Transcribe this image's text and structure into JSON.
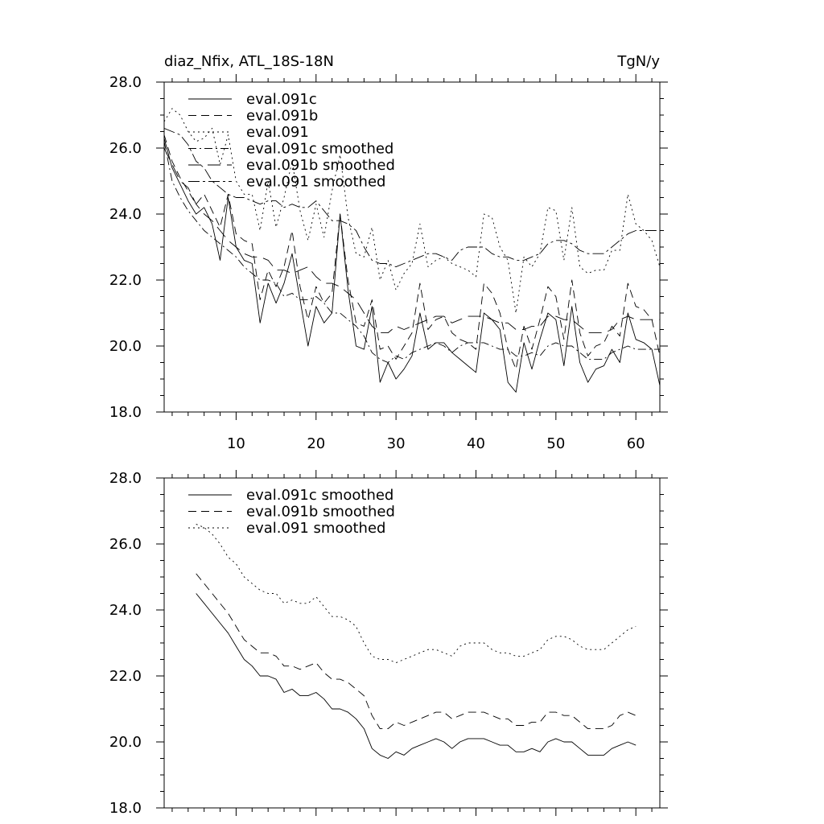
{
  "chart_data": [
    {
      "type": "line",
      "title": "diaz_Nfix, ATL_18S-18N",
      "units": "TgN/y",
      "xlabel": "",
      "ylabel": "",
      "xlim": [
        1,
        63
      ],
      "ylim": [
        18,
        28
      ],
      "xticks": [
        10,
        20,
        30,
        40,
        50,
        60
      ],
      "xtick_labels": [
        "10",
        "20",
        "30",
        "40",
        "50",
        "60"
      ],
      "yticks": [
        18,
        20,
        22,
        24,
        26,
        28
      ],
      "ytick_labels": [
        "18.0",
        "20.0",
        "22.0",
        "24.0",
        "26.0",
        "28.0"
      ],
      "legend": "top-left",
      "series": [
        {
          "name": "eval.091c",
          "dash": "solid",
          "x_start": 1,
          "values": [
            26.3,
            25.4,
            24.9,
            24.4,
            24.0,
            24.2,
            23.7,
            22.6,
            24.5,
            23.0,
            22.6,
            22.5,
            20.7,
            21.9,
            21.3,
            21.9,
            22.8,
            21.4,
            20.0,
            21.2,
            20.7,
            21.0,
            24.0,
            21.7,
            20.0,
            19.9,
            21.2,
            18.9,
            19.5,
            19.0,
            19.3,
            19.7,
            21.0,
            19.9,
            20.1,
            20.1,
            19.8,
            19.6,
            19.4,
            19.2,
            21.0,
            20.8,
            20.5,
            18.9,
            18.6,
            20.1,
            19.3,
            20.2,
            21.0,
            20.8,
            19.4,
            21.2,
            19.5,
            18.9,
            19.3,
            19.4,
            19.9,
            19.5,
            21.0,
            20.2,
            20.1,
            19.9,
            18.8
          ]
        },
        {
          "name": "eval.091b",
          "dash": "dash",
          "x_start": 1,
          "values": [
            26.4,
            25.6,
            25.1,
            24.7,
            24.3,
            24.6,
            24.1,
            23.6,
            24.6,
            23.4,
            23.2,
            23.1,
            21.4,
            22.3,
            21.8,
            22.4,
            23.5,
            21.8,
            20.8,
            21.8,
            21.3,
            21.6,
            24.0,
            22.0,
            20.7,
            20.6,
            21.4,
            19.9,
            20.0,
            19.6,
            20.0,
            20.4,
            21.9,
            20.5,
            20.8,
            20.9,
            20.4,
            20.2,
            20.1,
            19.9,
            21.9,
            21.6,
            21.0,
            19.9,
            19.3,
            20.6,
            19.9,
            20.8,
            21.8,
            21.5,
            20.2,
            22.0,
            20.4,
            19.7,
            20.0,
            20.1,
            20.6,
            20.3,
            21.9,
            21.2,
            21.1,
            20.8,
            19.7
          ]
        },
        {
          "name": "eval.091",
          "dash": "dot",
          "x_start": 1,
          "values": [
            26.8,
            27.2,
            27.0,
            26.5,
            26.2,
            26.3,
            26.6,
            25.5,
            26.4,
            25.0,
            24.6,
            24.6,
            23.5,
            25.0,
            23.6,
            24.5,
            25.6,
            24.1,
            23.2,
            24.3,
            23.3,
            24.7,
            25.8,
            23.9,
            22.8,
            22.7,
            23.6,
            22.0,
            22.6,
            21.7,
            22.2,
            22.5,
            23.7,
            22.4,
            22.6,
            22.7,
            22.5,
            22.4,
            22.3,
            22.1,
            24.0,
            23.9,
            23.0,
            22.6,
            21.0,
            22.7,
            22.4,
            22.8,
            24.2,
            24.1,
            22.6,
            24.2,
            22.4,
            22.2,
            22.3,
            22.3,
            22.9,
            22.9,
            24.6,
            23.7,
            23.5,
            23.2,
            22.4
          ]
        },
        {
          "name": "eval.091c smoothed",
          "dash": "dashdot",
          "x_start": 1,
          "values": [
            26.2,
            25.0,
            24.5,
            24.1,
            23.8,
            23.5,
            23.3,
            23.1,
            22.9,
            22.7,
            22.4,
            22.2,
            22.0,
            22.0,
            21.9,
            21.5,
            21.6,
            21.4,
            21.4,
            21.5,
            21.3,
            21.0,
            21.0,
            20.8,
            20.6,
            20.3,
            19.8,
            19.6,
            19.5,
            19.7,
            19.6,
            19.8,
            19.9,
            20.0,
            20.1,
            20.0,
            19.8,
            20.0,
            20.1,
            20.1,
            20.1,
            20.0,
            19.9,
            19.9,
            19.7,
            19.7,
            19.8,
            19.7,
            20.0,
            20.1,
            20.0,
            20.0,
            19.8,
            19.6,
            19.6,
            19.6,
            19.8,
            19.9,
            20.0,
            19.9,
            19.9,
            19.9,
            19.9
          ]
        },
        {
          "name": "eval.091b smoothed",
          "dash": "longdash",
          "x_start": 1,
          "values": [
            26.0,
            25.5,
            25.0,
            24.8,
            24.3,
            24.0,
            23.8,
            23.5,
            23.2,
            23.0,
            22.8,
            22.7,
            22.7,
            22.6,
            22.3,
            22.3,
            22.2,
            22.3,
            22.4,
            22.1,
            21.9,
            21.9,
            21.8,
            21.6,
            21.4,
            21.0,
            20.6,
            20.4,
            20.4,
            20.6,
            20.5,
            20.6,
            20.7,
            20.8,
            20.9,
            20.9,
            20.7,
            20.8,
            20.9,
            20.9,
            20.9,
            20.8,
            20.7,
            20.7,
            20.5,
            20.5,
            20.6,
            20.6,
            20.9,
            20.9,
            20.8,
            20.8,
            20.6,
            20.4,
            20.4,
            20.4,
            20.5,
            20.8,
            20.9,
            20.8,
            20.8,
            20.8,
            20.8
          ]
        },
        {
          "name": "eval.091 smoothed",
          "dash": "dashdot2",
          "x_start": 1,
          "values": [
            26.6,
            26.5,
            26.4,
            26.1,
            25.6,
            25.4,
            25.0,
            24.8,
            24.6,
            24.5,
            24.5,
            24.4,
            24.3,
            24.4,
            24.4,
            24.2,
            24.3,
            24.2,
            24.2,
            24.4,
            24.1,
            23.8,
            23.8,
            23.7,
            23.5,
            23.0,
            22.6,
            22.5,
            22.5,
            22.4,
            22.5,
            22.6,
            22.7,
            22.8,
            22.8,
            22.7,
            22.6,
            22.9,
            23.0,
            23.0,
            23.0,
            22.8,
            22.7,
            22.7,
            22.6,
            22.6,
            22.7,
            22.8,
            23.1,
            23.2,
            23.2,
            23.1,
            22.9,
            22.8,
            22.8,
            22.8,
            23.0,
            23.2,
            23.4,
            23.5,
            23.5,
            23.5,
            23.5
          ]
        }
      ]
    },
    {
      "type": "line",
      "title": "",
      "xlabel": "",
      "ylabel": "",
      "xlim": [
        1,
        63
      ],
      "ylim": [
        18,
        28
      ],
      "xticks": [
        10,
        20,
        30,
        40,
        50,
        60
      ],
      "yticks": [
        18,
        20,
        22,
        24,
        26,
        28
      ],
      "ytick_labels": [
        "18.0",
        "20.0",
        "22.0",
        "24.0",
        "26.0",
        "28.0"
      ],
      "legend": "top-left",
      "series": [
        {
          "name": "eval.091c smoothed",
          "dash": "solid",
          "x_start": 5,
          "values": [
            24.5,
            24.2,
            23.9,
            23.6,
            23.3,
            22.9,
            22.5,
            22.3,
            22.0,
            22.0,
            21.9,
            21.5,
            21.6,
            21.4,
            21.4,
            21.5,
            21.3,
            21.0,
            21.0,
            20.9,
            20.7,
            20.4,
            19.8,
            19.6,
            19.5,
            19.7,
            19.6,
            19.8,
            19.9,
            20.0,
            20.1,
            20.0,
            19.8,
            20.0,
            20.1,
            20.1,
            20.1,
            20.0,
            19.9,
            19.9,
            19.7,
            19.7,
            19.8,
            19.7,
            20.0,
            20.1,
            20.0,
            20.0,
            19.8,
            19.6,
            19.6,
            19.6,
            19.8,
            19.9,
            20.0,
            19.9
          ]
        },
        {
          "name": "eval.091b smoothed",
          "dash": "dash",
          "x_start": 5,
          "values": [
            25.1,
            24.8,
            24.5,
            24.2,
            23.9,
            23.5,
            23.1,
            22.9,
            22.7,
            22.7,
            22.6,
            22.3,
            22.3,
            22.2,
            22.3,
            22.4,
            22.1,
            21.9,
            21.9,
            21.8,
            21.6,
            21.4,
            20.8,
            20.4,
            20.4,
            20.6,
            20.5,
            20.6,
            20.7,
            20.8,
            20.9,
            20.9,
            20.7,
            20.8,
            20.9,
            20.9,
            20.9,
            20.8,
            20.7,
            20.7,
            20.5,
            20.5,
            20.6,
            20.6,
            20.9,
            20.9,
            20.8,
            20.8,
            20.6,
            20.4,
            20.4,
            20.4,
            20.5,
            20.8,
            20.9,
            20.8
          ]
        },
        {
          "name": "eval.091 smoothed",
          "dash": "dot",
          "x_start": 5,
          "values": [
            26.6,
            26.5,
            26.3,
            26.0,
            25.6,
            25.4,
            25.0,
            24.8,
            24.6,
            24.5,
            24.5,
            24.2,
            24.3,
            24.2,
            24.2,
            24.4,
            24.1,
            23.8,
            23.8,
            23.7,
            23.5,
            23.0,
            22.6,
            22.5,
            22.5,
            22.4,
            22.5,
            22.6,
            22.7,
            22.8,
            22.8,
            22.7,
            22.6,
            22.9,
            23.0,
            23.0,
            23.0,
            22.8,
            22.7,
            22.7,
            22.6,
            22.6,
            22.7,
            22.8,
            23.1,
            23.2,
            23.2,
            23.1,
            22.9,
            22.8,
            22.8,
            22.8,
            23.0,
            23.2,
            23.4,
            23.5
          ]
        }
      ]
    }
  ]
}
